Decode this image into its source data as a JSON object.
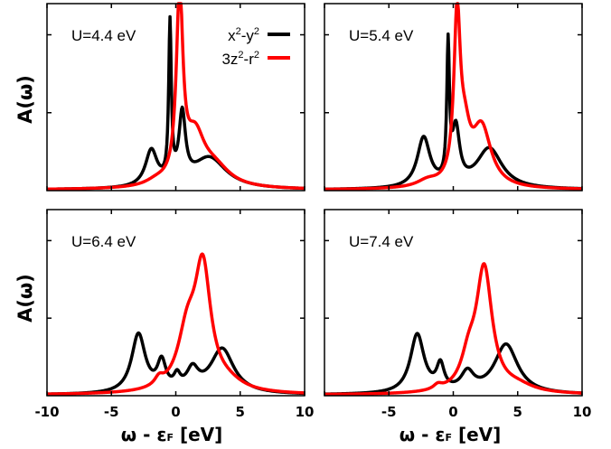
{
  "colors": {
    "x2y2": "#000000",
    "z2r2": "#ff0000"
  },
  "chart_data": {
    "type": "line",
    "ylabel": "A(ω)",
    "xlabel": "ω - εF [eV]",
    "xlabel_parts": {
      "omega": "ω",
      "minus": "-",
      "eps": "ε",
      "F": "F",
      "unit": "[eV]"
    },
    "xlim": [
      -10,
      10
    ],
    "ylim": [
      0,
      1.2
    ],
    "xticks": [
      -10,
      -5,
      0,
      5,
      10
    ],
    "xtick_labels_left": [
      "-10",
      "-5",
      "0",
      "5",
      "10"
    ],
    "xtick_labels_right": [
      "-5",
      "0",
      "5",
      "10"
    ],
    "legend": {
      "placement": "top-right of first panel",
      "entries": [
        {
          "key": "x2y2",
          "base1": "x",
          "sup1": "2",
          "mid": "-y",
          "sup2": "2",
          "tail": ""
        },
        {
          "key": "z2r2",
          "base1": "3z",
          "sup1": "2",
          "mid": "-r",
          "sup2": "2",
          "tail": ""
        }
      ]
    },
    "panels": [
      {
        "label": "U=4.4 eV",
        "series": [
          {
            "key": "x2y2",
            "baseline": 0.005,
            "peaks": [
              [
                -1.9,
                0.23,
                0.55
              ],
              [
                -0.45,
                1.0,
                0.12
              ],
              [
                0.5,
                0.43,
                0.3
              ],
              [
                2.6,
                0.2,
                1.6
              ]
            ]
          },
          {
            "key": "z2r2",
            "baseline": 0.005,
            "peaks": [
              [
                0.3,
                1.2,
                0.3
              ],
              [
                1.5,
                0.3,
                0.9
              ],
              [
                3.0,
                0.12,
                1.5
              ],
              [
                -1.5,
                0.03,
                1.0
              ]
            ]
          }
        ]
      },
      {
        "label": "U=5.4 eV",
        "series": [
          {
            "key": "x2y2",
            "baseline": 0.005,
            "peaks": [
              [
                -2.3,
                0.32,
                0.6
              ],
              [
                -0.4,
                0.85,
                0.12
              ],
              [
                0.2,
                0.35,
                0.35
              ],
              [
                2.8,
                0.26,
                1.2
              ]
            ]
          },
          {
            "key": "z2r2",
            "baseline": 0.005,
            "peaks": [
              [
                0.3,
                1.05,
                0.3
              ],
              [
                2.2,
                0.38,
                0.9
              ],
              [
                0.9,
                0.25,
                0.5
              ],
              [
                -2.0,
                0.04,
                1.0
              ]
            ]
          }
        ]
      },
      {
        "label": "U=6.4 eV",
        "series": [
          {
            "key": "x2y2",
            "baseline": 0.005,
            "peaks": [
              [
                -2.9,
                0.38,
                0.65
              ],
              [
                -1.1,
                0.18,
                0.4
              ],
              [
                0.1,
                0.08,
                0.3
              ],
              [
                1.3,
                0.13,
                0.55
              ],
              [
                3.6,
                0.29,
                1.1
              ]
            ]
          },
          {
            "key": "z2r2",
            "baseline": 0.005,
            "peaks": [
              [
                2.1,
                0.76,
                0.75
              ],
              [
                0.9,
                0.35,
                0.9
              ],
              [
                -1.3,
                0.05,
                0.4
              ],
              [
                4.0,
                0.05,
                1.5
              ]
            ]
          }
        ]
      },
      {
        "label": "U=7.4 eV",
        "series": [
          {
            "key": "x2y2",
            "baseline": 0.005,
            "peaks": [
              [
                -2.8,
                0.38,
                0.65
              ],
              [
                -1.0,
                0.16,
                0.35
              ],
              [
                1.1,
                0.12,
                0.6
              ],
              [
                4.1,
                0.32,
                1.1
              ]
            ]
          },
          {
            "key": "z2r2",
            "baseline": 0.005,
            "peaks": [
              [
                2.4,
                0.79,
                0.75
              ],
              [
                1.2,
                0.18,
                0.7
              ],
              [
                -1.2,
                0.03,
                0.4
              ],
              [
                5.0,
                0.04,
                1.5
              ]
            ]
          }
        ]
      }
    ]
  }
}
